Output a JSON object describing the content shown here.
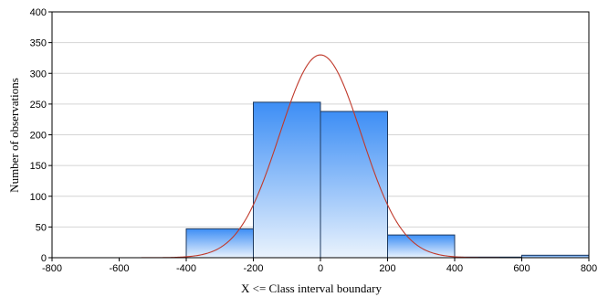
{
  "chart_data": {
    "type": "bar",
    "xlabel": "X <=  Class interval boundary",
    "ylabel": "Number of observations",
    "xlim": [
      -800,
      800
    ],
    "ylim": [
      0,
      400
    ],
    "x_ticks": [
      -800,
      -600,
      -400,
      -200,
      0,
      200,
      400,
      600,
      800
    ],
    "y_ticks": [
      0,
      50,
      100,
      150,
      200,
      250,
      300,
      350,
      400
    ],
    "grid": true,
    "bins": [
      {
        "from": -800,
        "to": -600,
        "value": 0
      },
      {
        "from": -600,
        "to": -400,
        "value": 0
      },
      {
        "from": -400,
        "to": -200,
        "value": 47
      },
      {
        "from": -200,
        "to": 0,
        "value": 253
      },
      {
        "from": 0,
        "to": 200,
        "value": 238
      },
      {
        "from": 200,
        "to": 400,
        "value": 37
      },
      {
        "from": 400,
        "to": 600,
        "value": 1
      },
      {
        "from": 600,
        "to": 800,
        "value": 4
      }
    ],
    "fitted_curve": {
      "type": "normal",
      "mean": 0,
      "sd": 122,
      "peak": 330
    },
    "colors": {
      "bar_top": "#3d8ef5",
      "bar_bottom": "#eaf3fd",
      "bar_stroke": "#1f3a5f",
      "curve": "#c0392b"
    }
  }
}
